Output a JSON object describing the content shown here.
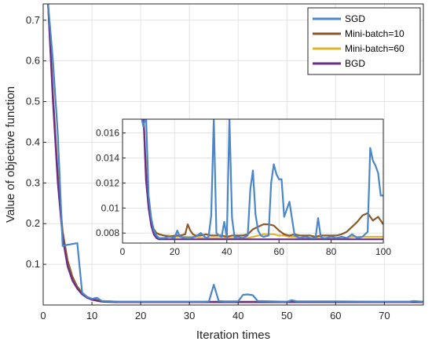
{
  "chart_data": [
    {
      "type": "line",
      "title": "",
      "xlabel": "Iteration times",
      "ylabel": "Value of objective function",
      "xlim": [
        0,
        78
      ],
      "ylim": [
        0,
        0.74
      ],
      "xticks": [
        0,
        10,
        20,
        30,
        40,
        50,
        60,
        70
      ],
      "yticks": [
        0.1,
        0.2,
        0.3,
        0.4,
        0.5,
        0.6,
        0.7
      ],
      "xtick_labels": [
        "0",
        "10",
        "20",
        "30",
        "40",
        "50",
        "60",
        "70"
      ],
      "ytick_labels": [
        "0.1",
        "0.2",
        "0.3",
        "0.4",
        "0.5",
        "0.6",
        "0.7"
      ],
      "grid": true,
      "legend_position": "top-right",
      "series": [
        {
          "name": "SGD",
          "color": "#4a86c8",
          "x": [
            1,
            2,
            3,
            4,
            5,
            6,
            7,
            8,
            9,
            10,
            11,
            12,
            14,
            16,
            20,
            30,
            33,
            34,
            35,
            36,
            37,
            40,
            41,
            42,
            43,
            44,
            50,
            51,
            52,
            60,
            70,
            75,
            76,
            77,
            78
          ],
          "y": [
            0.74,
            0.6,
            0.42,
            0.145,
            0.148,
            0.15,
            0.152,
            0.03,
            0.02,
            0.015,
            0.018,
            0.01,
            0.009,
            0.008,
            0.008,
            0.008,
            0.008,
            0.009,
            0.05,
            0.01,
            0.009,
            0.009,
            0.025,
            0.026,
            0.024,
            0.01,
            0.008,
            0.012,
            0.009,
            0.009,
            0.008,
            0.008,
            0.01,
            0.009,
            0.008
          ]
        },
        {
          "name": "Mini-batch=10",
          "color": "#8b5a2b",
          "x": [
            1,
            2,
            3,
            4,
            5,
            6,
            7,
            8,
            9,
            10,
            12,
            15,
            20,
            30,
            40,
            50,
            60,
            70,
            78
          ],
          "y": [
            0.74,
            0.52,
            0.32,
            0.18,
            0.11,
            0.07,
            0.045,
            0.03,
            0.02,
            0.015,
            0.01,
            0.008,
            0.008,
            0.008,
            0.008,
            0.008,
            0.008,
            0.008,
            0.008
          ]
        },
        {
          "name": "Mini-batch=60",
          "color": "#e0b42a",
          "x": [
            1,
            2,
            3,
            4,
            5,
            6,
            7,
            8,
            9,
            10,
            12,
            15,
            20,
            30,
            40,
            50,
            60,
            70,
            78
          ],
          "y": [
            0.74,
            0.51,
            0.31,
            0.17,
            0.1,
            0.065,
            0.042,
            0.028,
            0.019,
            0.014,
            0.009,
            0.008,
            0.008,
            0.008,
            0.008,
            0.008,
            0.008,
            0.008,
            0.008
          ]
        },
        {
          "name": "BGD",
          "color": "#6a2d8a",
          "x": [
            1,
            2,
            3,
            4,
            5,
            6,
            7,
            8,
            9,
            10,
            12,
            15,
            20,
            30,
            40,
            50,
            60,
            70,
            78
          ],
          "y": [
            0.74,
            0.5,
            0.3,
            0.165,
            0.095,
            0.06,
            0.04,
            0.026,
            0.018,
            0.013,
            0.008,
            0.007,
            0.007,
            0.007,
            0.007,
            0.007,
            0.007,
            0.007,
            0.007
          ]
        }
      ]
    },
    {
      "type": "line",
      "title": "",
      "xlabel": "",
      "ylabel": "",
      "xlim": [
        0,
        100
      ],
      "ylim": [
        0.0072,
        0.0171
      ],
      "xticks": [
        0,
        20,
        40,
        60,
        80,
        100
      ],
      "yticks": [
        0.008,
        0.01,
        0.012,
        0.014,
        0.016
      ],
      "xtick_labels": [
        "0",
        "20",
        "40",
        "60",
        "80",
        "100"
      ],
      "ytick_labels": [
        "0.008",
        "0.01",
        "0.012",
        "0.014",
        "0.016"
      ],
      "grid": true,
      "series": [
        {
          "name": "SGD",
          "color": "#4a86c8",
          "x": [
            7,
            8,
            9,
            10,
            11,
            12,
            13,
            14,
            16,
            18,
            20,
            21,
            22,
            24,
            26,
            28,
            30,
            32,
            33,
            34,
            35,
            36,
            37,
            38,
            39,
            40,
            41,
            42,
            43,
            44,
            46,
            48,
            49,
            50,
            51,
            52,
            53,
            54,
            56,
            57,
            58,
            59,
            60,
            61,
            62,
            64,
            66,
            68,
            70,
            72,
            74,
            75,
            76,
            77,
            78,
            80,
            82,
            84,
            86,
            88,
            90,
            92,
            94,
            95,
            96,
            97,
            98,
            99,
            100
          ],
          "y": [
            0.0175,
            0.0165,
            0.0175,
            0.011,
            0.0092,
            0.0082,
            0.0078,
            0.0076,
            0.0076,
            0.0077,
            0.0076,
            0.0082,
            0.0077,
            0.0076,
            0.0076,
            0.0077,
            0.008,
            0.0076,
            0.0077,
            0.0094,
            0.0172,
            0.008,
            0.0078,
            0.0077,
            0.0089,
            0.0076,
            0.0172,
            0.0092,
            0.0076,
            0.0077,
            0.0076,
            0.0078,
            0.0115,
            0.013,
            0.0095,
            0.0082,
            0.0078,
            0.0077,
            0.0078,
            0.012,
            0.0135,
            0.0127,
            0.0123,
            0.0123,
            0.0093,
            0.0105,
            0.0078,
            0.0076,
            0.0077,
            0.0076,
            0.0076,
            0.0092,
            0.0077,
            0.0076,
            0.0076,
            0.0077,
            0.0076,
            0.0077,
            0.0076,
            0.0079,
            0.0076,
            0.0077,
            0.0081,
            0.0148,
            0.0138,
            0.0134,
            0.0128,
            0.011,
            0.011
          ]
        },
        {
          "name": "Mini-batch=10",
          "color": "#8b5a2b",
          "x": [
            8,
            9,
            10,
            11,
            12,
            13,
            14,
            16,
            18,
            20,
            22,
            24,
            25,
            26,
            27,
            28,
            30,
            32,
            34,
            36,
            38,
            40,
            42,
            44,
            46,
            48,
            50,
            52,
            54,
            56,
            58,
            60,
            62,
            64,
            66,
            68,
            70,
            72,
            74,
            76,
            78,
            80,
            82,
            84,
            86,
            88,
            90,
            92,
            94,
            96,
            98,
            99,
            100
          ],
          "y": [
            0.0175,
            0.013,
            0.0105,
            0.009,
            0.0083,
            0.008,
            0.0079,
            0.0078,
            0.0077,
            0.0078,
            0.0078,
            0.0079,
            0.0087,
            0.0082,
            0.0079,
            0.0078,
            0.0078,
            0.0079,
            0.0078,
            0.0078,
            0.0078,
            0.0077,
            0.0078,
            0.0078,
            0.0078,
            0.0079,
            0.0083,
            0.0085,
            0.0087,
            0.0087,
            0.0086,
            0.0082,
            0.0079,
            0.0078,
            0.0079,
            0.0078,
            0.0078,
            0.0078,
            0.0077,
            0.0078,
            0.0078,
            0.0078,
            0.0078,
            0.0079,
            0.0081,
            0.0085,
            0.0089,
            0.0094,
            0.0096,
            0.009,
            0.0093,
            0.009,
            0.0087
          ]
        },
        {
          "name": "Mini-batch=60",
          "color": "#e0b42a",
          "x": [
            8,
            9,
            10,
            11,
            12,
            13,
            14,
            16,
            18,
            20,
            22,
            24,
            26,
            28,
            30,
            32,
            34,
            36,
            38,
            40,
            42,
            44,
            46,
            48,
            50,
            52,
            54,
            56,
            58,
            60,
            62,
            64,
            66,
            68,
            70,
            72,
            74,
            76,
            78,
            80,
            82,
            84,
            86,
            88,
            90,
            92,
            94,
            96,
            98,
            100
          ],
          "y": [
            0.0175,
            0.0125,
            0.0102,
            0.0089,
            0.0083,
            0.008,
            0.0079,
            0.0078,
            0.0078,
            0.0077,
            0.0077,
            0.0077,
            0.0077,
            0.0077,
            0.0076,
            0.0076,
            0.0076,
            0.0076,
            0.0076,
            0.0076,
            0.0076,
            0.0076,
            0.0076,
            0.0076,
            0.0077,
            0.0078,
            0.0079,
            0.0079,
            0.0079,
            0.0078,
            0.0078,
            0.0077,
            0.0077,
            0.0076,
            0.0076,
            0.0076,
            0.0076,
            0.0076,
            0.0076,
            0.0076,
            0.0076,
            0.0076,
            0.0076,
            0.0077,
            0.0077,
            0.0077,
            0.0077,
            0.0077,
            0.0077,
            0.0077
          ]
        },
        {
          "name": "BGD",
          "color": "#6a2d8a",
          "x": [
            8,
            9,
            10,
            11,
            12,
            13,
            14,
            16,
            18,
            20,
            30,
            40,
            50,
            60,
            70,
            80,
            90,
            100
          ],
          "y": [
            0.0175,
            0.0122,
            0.01,
            0.0086,
            0.0079,
            0.0076,
            0.0075,
            0.0075,
            0.0075,
            0.0075,
            0.0075,
            0.0075,
            0.0075,
            0.0075,
            0.0075,
            0.0075,
            0.0075,
            0.0075
          ]
        }
      ]
    }
  ]
}
